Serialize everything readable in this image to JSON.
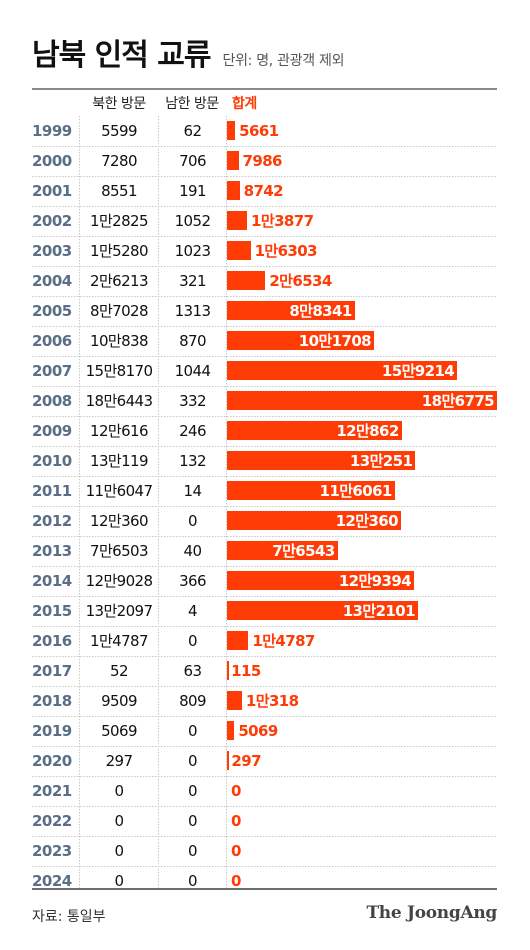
{
  "title": "남북 인적 교류",
  "unit_note": "단위: 명, 관광객 제외",
  "columns": {
    "north_visits": "북한 방문",
    "south_visits": "남한 방문",
    "total": "합계"
  },
  "source": "자료: 통일부",
  "brand": "The JoongAng",
  "colors": {
    "accent": "#ff3b06",
    "year": "#5a6f86"
  },
  "chart_data": {
    "type": "table",
    "title": "남북 인적 교류",
    "subtitle": "단위: 명, 관광객 제외",
    "columns": [
      "북한 방문",
      "남한 방문",
      "합계"
    ],
    "bar_column": "합계",
    "rows": [
      {
        "year": "1999",
        "north": "5599",
        "south": "62",
        "total_label": "5661",
        "total": 5661
      },
      {
        "year": "2000",
        "north": "7280",
        "south": "706",
        "total_label": "7986",
        "total": 7986
      },
      {
        "year": "2001",
        "north": "8551",
        "south": "191",
        "total_label": "8742",
        "total": 8742
      },
      {
        "year": "2002",
        "north": "1만2825",
        "south": "1052",
        "total_label": "1만3877",
        "total": 13877
      },
      {
        "year": "2003",
        "north": "1만5280",
        "south": "1023",
        "total_label": "1만6303",
        "total": 16303
      },
      {
        "year": "2004",
        "north": "2만6213",
        "south": "321",
        "total_label": "2만6534",
        "total": 26534
      },
      {
        "year": "2005",
        "north": "8만7028",
        "south": "1313",
        "total_label": "8만8341",
        "total": 88341
      },
      {
        "year": "2006",
        "north": "10만838",
        "south": "870",
        "total_label": "10만1708",
        "total": 101708
      },
      {
        "year": "2007",
        "north": "15만8170",
        "south": "1044",
        "total_label": "15만9214",
        "total": 159214
      },
      {
        "year": "2008",
        "north": "18만6443",
        "south": "332",
        "total_label": "18만6775",
        "total": 186775
      },
      {
        "year": "2009",
        "north": "12만616",
        "south": "246",
        "total_label": "12만862",
        "total": 120862
      },
      {
        "year": "2010",
        "north": "13만119",
        "south": "132",
        "total_label": "13만251",
        "total": 130251
      },
      {
        "year": "2011",
        "north": "11만6047",
        "south": "14",
        "total_label": "11만6061",
        "total": 116061
      },
      {
        "year": "2012",
        "north": "12만360",
        "south": "0",
        "total_label": "12만360",
        "total": 120360
      },
      {
        "year": "2013",
        "north": "7만6503",
        "south": "40",
        "total_label": "7만6543",
        "total": 76543
      },
      {
        "year": "2014",
        "north": "12만9028",
        "south": "366",
        "total_label": "12만9394",
        "total": 129394
      },
      {
        "year": "2015",
        "north": "13만2097",
        "south": "4",
        "total_label": "13만2101",
        "total": 132101
      },
      {
        "year": "2016",
        "north": "1만4787",
        "south": "0",
        "total_label": "1만4787",
        "total": 14787
      },
      {
        "year": "2017",
        "north": "52",
        "south": "63",
        "total_label": "115",
        "total": 115
      },
      {
        "year": "2018",
        "north": "9509",
        "south": "809",
        "total_label": "1만318",
        "total": 10318
      },
      {
        "year": "2019",
        "north": "5069",
        "south": "0",
        "total_label": "5069",
        "total": 5069
      },
      {
        "year": "2020",
        "north": "297",
        "south": "0",
        "total_label": "297",
        "total": 297
      },
      {
        "year": "2021",
        "north": "0",
        "south": "0",
        "total_label": "0",
        "total": 0
      },
      {
        "year": "2022",
        "north": "0",
        "south": "0",
        "total_label": "0",
        "total": 0
      },
      {
        "year": "2023",
        "north": "0",
        "south": "0",
        "total_label": "0",
        "total": 0
      },
      {
        "year": "2024",
        "north": "0",
        "south": "0",
        "total_label": "0",
        "total": 0
      }
    ]
  }
}
